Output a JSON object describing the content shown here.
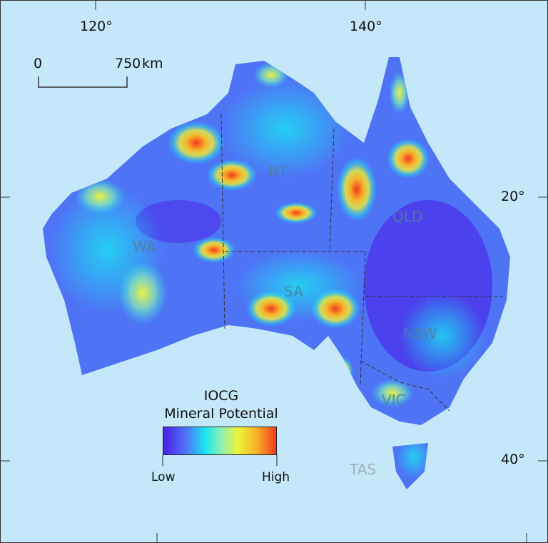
{
  "map": {
    "graticule": {
      "longitudes": [
        "120°",
        "140°"
      ],
      "latitudes": [
        "20°",
        "40°"
      ]
    },
    "scale_bar": {
      "start": "0",
      "end": "750",
      "unit": "km"
    },
    "states": [
      "WA",
      "NT",
      "SA",
      "QLD",
      "NSW",
      "VIC",
      "TAS"
    ],
    "colors": {
      "ocean": "#c4e8fa",
      "low": "#4a1fe8",
      "mid": "#19e6f2",
      "high": "#f33a1e"
    }
  },
  "legend": {
    "title_line1": "IOCG",
    "title_line2": "Mineral Potential",
    "low_label": "Low",
    "high_label": "High"
  }
}
